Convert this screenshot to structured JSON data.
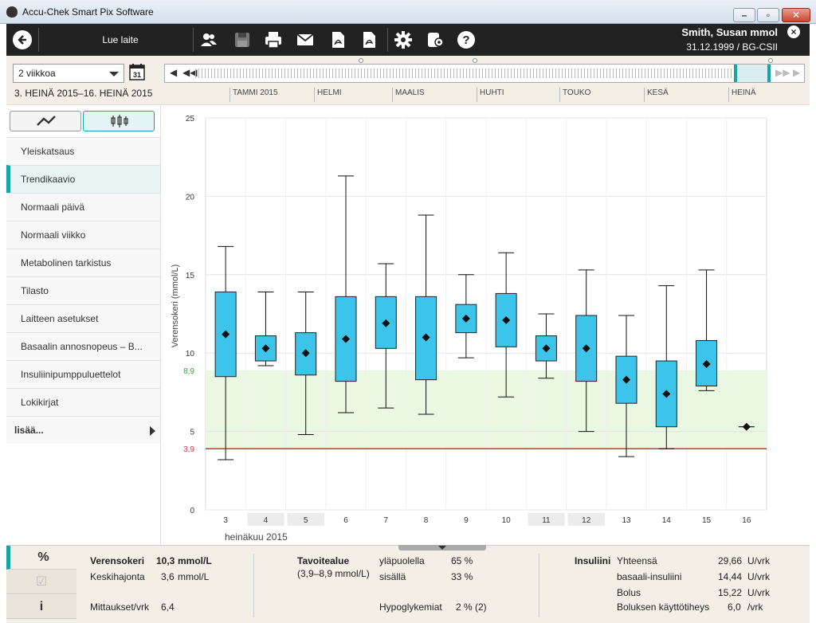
{
  "window": {
    "title": "Accu-Chek Smart Pix Software"
  },
  "toolbar": {
    "read_device_label": "Lue laite",
    "icons": [
      "back-icon",
      "patients-icon",
      "save-icon",
      "print-icon",
      "email-icon",
      "pdf-export-icon",
      "pdf-icon",
      "settings-icon",
      "device-settings-icon",
      "help-icon"
    ]
  },
  "patient": {
    "name": "Smith, Susan mmol",
    "details": "31.12.1999 / BG-CSII"
  },
  "period": {
    "selected": "2 viikkoa",
    "range": "3. HEINÄ 2015–16. HEINÄ 2015",
    "calendar_day": "31"
  },
  "timeline_months": [
    "TAMMI 2015",
    "HELMI",
    "MAALIS",
    "HUHTI",
    "TOUKO",
    "KESÄ",
    "HEINÄ"
  ],
  "nav": {
    "items": [
      "Yleiskatsaus",
      "Trendikaavio",
      "Normaali päivä",
      "Normaali viikko",
      "Metabolinen tarkistus",
      "Tilasto",
      "Laitteen asetukset",
      "Basaalin annosnopeus – B...",
      "Insuliinipumppuluettelot",
      "Lokikirjat"
    ],
    "active_index": 1,
    "more": "lisää..."
  },
  "chart_data": {
    "type": "boxplot",
    "ylabel": "Verensokeri (mmol/L)",
    "xlabel": "heinäkuu 2015",
    "ylim": [
      0,
      25
    ],
    "yticks": [
      "0",
      "5",
      "10",
      "15",
      "20",
      "25"
    ],
    "target_range": {
      "low": 3.9,
      "high": 8.9,
      "low_label": "3,9",
      "high_label": "8,9",
      "color": "#eaf7e2"
    },
    "hypo_line_color": "#d9333f",
    "box_color": "#3cc4ea",
    "categories": [
      "3",
      "4",
      "5",
      "6",
      "7",
      "8",
      "9",
      "10",
      "11",
      "12",
      "13",
      "14",
      "15",
      "16"
    ],
    "shaded_categories": [
      "4",
      "5",
      "11",
      "12"
    ],
    "boxes": [
      {
        "day": "3",
        "min": 3.2,
        "q1": 8.5,
        "median": 11.2,
        "q3": 13.9,
        "max": 16.8
      },
      {
        "day": "4",
        "min": 9.2,
        "q1": 9.5,
        "median": 10.3,
        "q3": 11.1,
        "max": 13.9
      },
      {
        "day": "5",
        "min": 4.8,
        "q1": 8.6,
        "median": 10.0,
        "q3": 11.3,
        "max": 13.9
      },
      {
        "day": "6",
        "min": 6.2,
        "q1": 8.2,
        "median": 10.9,
        "q3": 13.6,
        "max": 21.3
      },
      {
        "day": "7",
        "min": 6.5,
        "q1": 10.3,
        "median": 11.9,
        "q3": 13.6,
        "max": 15.7
      },
      {
        "day": "8",
        "min": 6.1,
        "q1": 8.3,
        "median": 11.0,
        "q3": 13.6,
        "max": 18.8
      },
      {
        "day": "9",
        "min": 9.7,
        "q1": 11.3,
        "median": 12.2,
        "q3": 13.1,
        "max": 15.0
      },
      {
        "day": "10",
        "min": 7.2,
        "q1": 10.4,
        "median": 12.1,
        "q3": 13.8,
        "max": 16.4
      },
      {
        "day": "11",
        "min": 8.4,
        "q1": 9.5,
        "median": 10.3,
        "q3": 11.1,
        "max": 12.5
      },
      {
        "day": "12",
        "min": 5.0,
        "q1": 8.2,
        "median": 10.3,
        "q3": 12.4,
        "max": 15.3
      },
      {
        "day": "13",
        "min": 3.4,
        "q1": 6.8,
        "median": 8.3,
        "q3": 9.8,
        "max": 12.4
      },
      {
        "day": "14",
        "min": 3.9,
        "q1": 5.3,
        "median": 7.4,
        "q3": 9.5,
        "max": 14.3
      },
      {
        "day": "15",
        "min": 7.6,
        "q1": 7.9,
        "median": 9.3,
        "q3": 10.8,
        "max": 15.3
      },
      {
        "day": "16",
        "median": 5.3,
        "single": true
      }
    ]
  },
  "summary": {
    "tabs": [
      "%",
      "☑",
      "i"
    ],
    "bg_label": "Verensokeri",
    "bg_value": "10,3",
    "bg_unit": "mmol/L",
    "sd_label": "Keskihajonta",
    "sd_value": "3,6",
    "sd_unit": "mmol/L",
    "tests_label": "Mittaukset/vrk",
    "tests_value": "6,4",
    "target_label": "Tavoitealue",
    "target_range": "(3,9–8,9 mmol/L)",
    "above_label": "yläpuolella",
    "above_value": "65 %",
    "within_label": "sisällä",
    "within_value": "33 %",
    "hypo_label": "Hypoglykemiat",
    "hypo_value": "2 % (2)",
    "insulin_label": "Insuliini",
    "total_label": "Yhteensä",
    "total_value": "29,66",
    "total_unit": "U/vrk",
    "basal_label": "basaali-insuliini",
    "basal_value": "14,44",
    "basal_unit": "U/vrk",
    "bolus_label": "Bolus",
    "bolus_value": "15,22",
    "bolus_unit": "U/vrk",
    "bolus_freq_label": "Boluksen käyttötiheys",
    "bolus_freq_value": "6,0",
    "bolus_freq_unit": "/vrk"
  }
}
